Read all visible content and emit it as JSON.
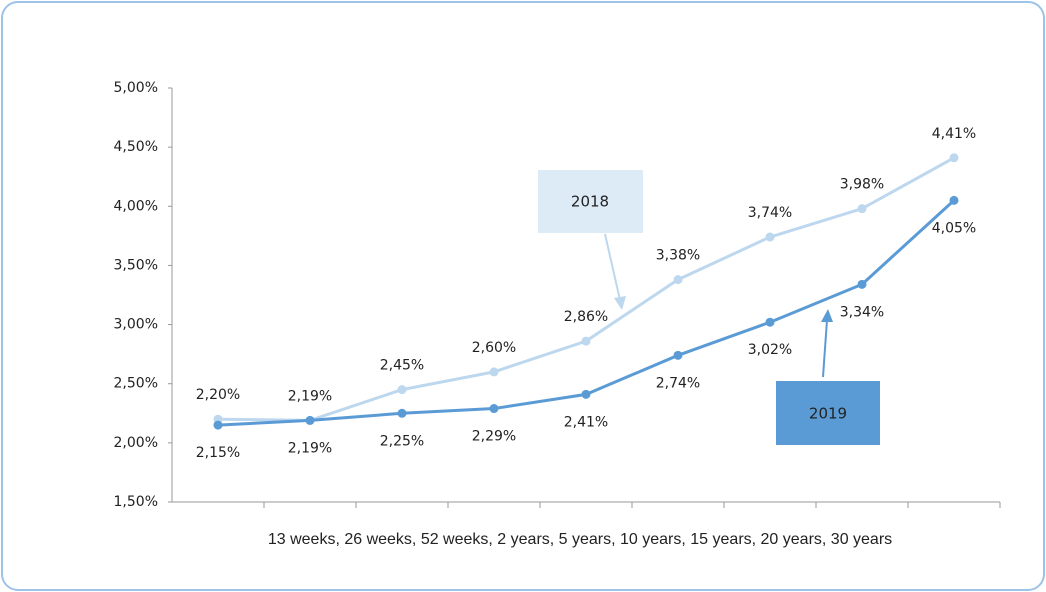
{
  "chart_data": {
    "type": "line",
    "xlabel": "13 weeks, 26 weeks, 52 weeks, 2 years, 5 years, 10 years, 15 years, 20 years, 30 years",
    "categories": [
      null,
      null,
      null,
      null,
      null,
      null,
      null,
      null,
      null
    ],
    "series": [
      {
        "name": "2018",
        "color": "#bdd7ee",
        "box_color": "#ddebf7",
        "values": [
          2.2,
          2.19,
          2.45,
          2.6,
          2.86,
          3.38,
          3.74,
          3.98,
          4.41
        ],
        "value_labels": [
          "2,20%",
          "2,19%",
          "2,45%",
          "2,60%",
          "2,86%",
          "3,38%",
          "3,74%",
          "3,98%",
          "4,41%"
        ]
      },
      {
        "name": "2019",
        "color": "#5b9bd5",
        "box_color": "#5b9bd5",
        "values": [
          2.15,
          2.19,
          2.25,
          2.29,
          2.41,
          2.74,
          3.02,
          3.34,
          4.05
        ],
        "value_labels": [
          "2,15%",
          "2,19%",
          "2,25%",
          "2,29%",
          "2,41%",
          "2,74%",
          "3,02%",
          "3,34%",
          "4,05%"
        ]
      }
    ],
    "ylim": [
      1.5,
      5.0
    ],
    "yticks": [
      {
        "value": 1.5,
        "label": "1,50%"
      },
      {
        "value": 2.0,
        "label": "2,00%"
      },
      {
        "value": 2.5,
        "label": "2,50%"
      },
      {
        "value": 3.0,
        "label": "3,00%"
      },
      {
        "value": 3.5,
        "label": "3,50%"
      },
      {
        "value": 4.0,
        "label": "4,00%"
      },
      {
        "value": 4.5,
        "label": "4,50%"
      },
      {
        "value": 5.0,
        "label": "5,00%"
      }
    ],
    "grid": false
  }
}
